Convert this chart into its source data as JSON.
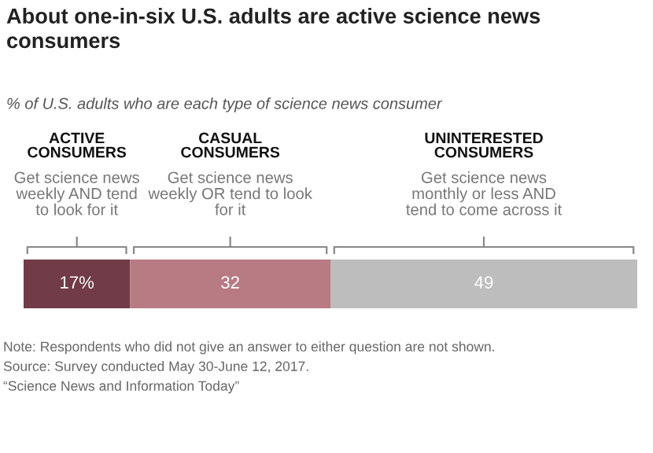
{
  "chart_data": {
    "type": "bar",
    "orientation": "horizontal",
    "stacked": true,
    "title": "About one-in-six U.S. adults are active science news consumers",
    "subtitle": "% of U.S. adults who are each type of science news consumer",
    "categories": [
      null
    ],
    "series": [
      {
        "color": "#713c47",
        "values": [
          17
        ],
        "value_labels": [
          "17%"
        ]
      },
      {
        "color": "#b87a83",
        "values": [
          32
        ],
        "value_labels": [
          "32"
        ]
      },
      {
        "color": "#bdbdbd",
        "values": [
          49
        ],
        "value_labels": [
          "49"
        ]
      }
    ],
    "annotations": [
      "ACTIVE CONSUMERS",
      "CASUAL CONSUMERS",
      "UNINTERESTED CONSUMERS",
      "Get science news weekly AND tend to look for it",
      "Get science news weekly OR tend to look for it",
      "Get science news monthly or less AND tend to come across it",
      "Note: Respondents who did not give an answer to either question are not shown.",
      "Source: Survey conducted May 30-June 12, 2017.",
      "“Science News and Information Today”"
    ]
  }
}
